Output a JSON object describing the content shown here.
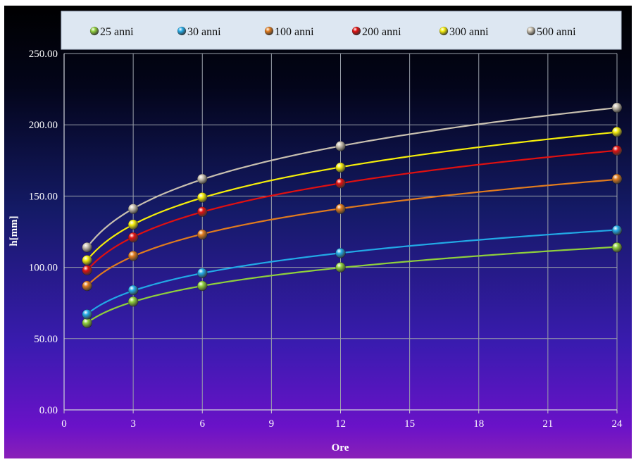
{
  "chart_data": {
    "type": "line",
    "title": "",
    "xlabel": "Ore",
    "ylabel": "h[mm]",
    "xlim": [
      0,
      24
    ],
    "ylim": [
      0,
      250
    ],
    "x_ticks": [
      "0",
      "3",
      "6",
      "9",
      "12",
      "15",
      "18",
      "21",
      "24"
    ],
    "y_ticks": [
      "0.00",
      "50.00",
      "100.00",
      "150.00",
      "200.00",
      "250.00"
    ],
    "grid": true,
    "legend_position": "top",
    "x": [
      1,
      3,
      6,
      12,
      24
    ],
    "series": [
      {
        "name": "25 anni",
        "color": "#8fcf3c",
        "values": [
          61,
          76,
          87,
          100,
          114
        ]
      },
      {
        "name": "30 anni",
        "color": "#22a9e6",
        "values": [
          67,
          84,
          96,
          110,
          126
        ]
      },
      {
        "name": "100 anni",
        "color": "#e07b1e",
        "values": [
          87,
          108,
          123,
          141,
          162
        ]
      },
      {
        "name": "200 anni",
        "color": "#e01010",
        "values": [
          98,
          121,
          139,
          159,
          182
        ]
      },
      {
        "name": "300 anni",
        "color": "#f5ee0a",
        "values": [
          105,
          130,
          149,
          170,
          195
        ]
      },
      {
        "name": "500 anni",
        "color": "#c8c0b0",
        "values": [
          114,
          141,
          162,
          185,
          212
        ]
      }
    ]
  }
}
